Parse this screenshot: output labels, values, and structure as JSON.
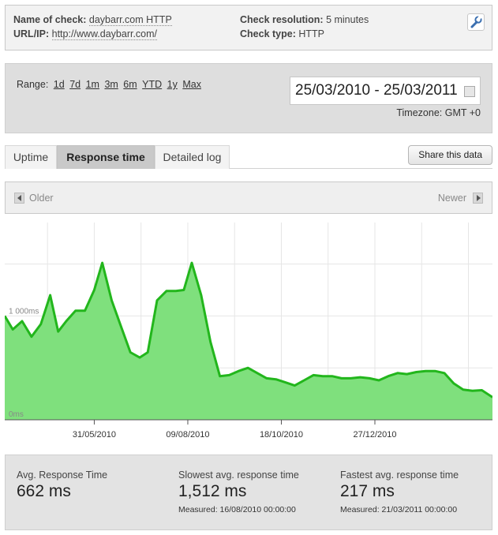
{
  "check": {
    "name_label": "Name of check:",
    "name_value": "daybarr.com HTTP",
    "url_label": "URL/IP:",
    "url_value": "http://www.daybarr.com/",
    "resolution_label": "Check resolution:",
    "resolution_value": "5 minutes",
    "type_label": "Check type:",
    "type_value": "HTTP",
    "edit_icon": "wrench-icon"
  },
  "range": {
    "label": "Range:",
    "options": [
      "1d",
      "7d",
      "1m",
      "3m",
      "6m",
      "YTD",
      "1y",
      "Max"
    ],
    "date_range": "25/03/2010 - 25/03/2011",
    "calendar_icon": "calendar-icon",
    "timezone": "Timezone: GMT +0"
  },
  "tabs": [
    "Uptime",
    "Response time",
    "Detailed log"
  ],
  "active_tab": "Response time",
  "share_label": "Share this data",
  "nav": {
    "older": "Older",
    "newer": "Newer"
  },
  "chart_data": {
    "type": "area",
    "title": "",
    "xlabel": "",
    "ylabel": "",
    "ylim": [
      0,
      1900
    ],
    "y_ticks": [
      {
        "value": 1000,
        "label": "1 000ms"
      },
      {
        "value": 0,
        "label": "0ms"
      }
    ],
    "x_ticks": [
      {
        "date": "2010-05-31",
        "label": "31/05/2010"
      },
      {
        "date": "2010-08-09",
        "label": "09/08/2010"
      },
      {
        "date": "2010-10-18",
        "label": "18/10/2010"
      },
      {
        "date": "2010-12-27",
        "label": "27/12/2010"
      }
    ],
    "x_range": [
      "2010-03-25",
      "2011-03-25"
    ],
    "grid": true,
    "line_color": "#22b61c",
    "fill_color": "#7fe07d",
    "series": [
      {
        "dates": [
          "2010-03-25",
          "2010-03-31",
          "2010-04-07",
          "2010-04-14",
          "2010-04-21",
          "2010-04-28",
          "2010-05-04",
          "2010-05-10",
          "2010-05-17",
          "2010-05-24",
          "2010-05-31",
          "2010-06-06",
          "2010-06-13",
          "2010-06-20",
          "2010-06-27",
          "2010-07-04",
          "2010-07-10",
          "2010-07-17",
          "2010-07-24",
          "2010-07-31",
          "2010-08-06",
          "2010-08-12",
          "2010-08-19",
          "2010-08-26",
          "2010-09-02",
          "2010-09-09",
          "2010-09-16",
          "2010-09-23",
          "2010-09-30",
          "2010-10-07",
          "2010-10-14",
          "2010-10-21",
          "2010-10-28",
          "2010-11-04",
          "2010-11-11",
          "2010-11-18",
          "2010-11-25",
          "2010-12-02",
          "2010-12-09",
          "2010-12-16",
          "2010-12-23",
          "2010-12-30",
          "2011-01-06",
          "2011-01-13",
          "2011-01-20",
          "2011-01-27",
          "2011-02-03",
          "2011-02-10",
          "2011-02-17",
          "2011-02-24",
          "2011-03-03",
          "2011-03-10",
          "2011-03-17",
          "2011-03-25"
        ],
        "values": [
          1000,
          870,
          950,
          800,
          920,
          1200,
          850,
          950,
          1050,
          1050,
          1250,
          1512,
          1150,
          900,
          650,
          600,
          650,
          1150,
          1240,
          1240,
          1250,
          1512,
          1200,
          750,
          420,
          430,
          470,
          500,
          450,
          400,
          390,
          360,
          330,
          380,
          430,
          420,
          420,
          400,
          400,
          410,
          400,
          380,
          420,
          450,
          440,
          460,
          470,
          470,
          450,
          350,
          290,
          280,
          285,
          217
        ]
      }
    ]
  },
  "stats": {
    "avg_label": "Avg. Response Time",
    "avg_value": "662 ms",
    "slowest_label": "Slowest avg. response time",
    "slowest_value": "1,512 ms",
    "slowest_measured": "Measured: 16/08/2010 00:00:00",
    "fastest_label": "Fastest avg. response time",
    "fastest_value": "217 ms",
    "fastest_measured": "Measured: 21/03/2011 00:00:00"
  }
}
